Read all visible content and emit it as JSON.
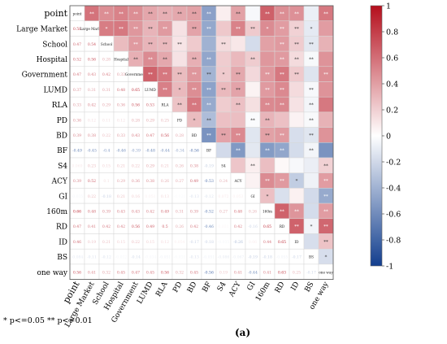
{
  "chart_data": {
    "type": "heatmap",
    "variables": [
      "point",
      "Large Market",
      "School",
      "Hospital",
      "Government",
      "LUMD",
      "RLA",
      "PD",
      "BD",
      "BF",
      "S4",
      "ACY",
      "GI",
      "160m",
      "RD",
      "ID",
      "BS",
      "one way"
    ],
    "colorbar": {
      "ticks": [
        1,
        0.8,
        0.6,
        0.4,
        0.2,
        0,
        -0.2,
        -0.4,
        -0.6,
        -0.8,
        -1
      ],
      "range": [
        -1,
        1
      ]
    },
    "significance_note": "* p<=0.05  ** p<=0.01",
    "panel_label": "(a)",
    "lower_triangle": [
      [],
      [
        0.58
      ],
      [
        0.47,
        0.54
      ],
      [
        0.52,
        0.56,
        0.28
      ],
      [
        0.47,
        0.43,
        0.42,
        0.33
      ],
      [
        0.37,
        0.31,
        0.31,
        0.48,
        0.65
      ],
      [
        0.33,
        0.42,
        0.29,
        0.36,
        0.56,
        0.53
      ],
      [
        0.36,
        0.12,
        0.11,
        0.12,
        0.28,
        0.29,
        0.25
      ],
      [
        0.39,
        0.38,
        0.22,
        0.33,
        0.43,
        0.47,
        0.56,
        0.28
      ],
      [
        -0.49,
        -0.45,
        -0.4,
        -0.46,
        -0.39,
        -0.48,
        -0.44,
        -0.34,
        -0.56
      ],
      [
        0.069,
        0.23,
        0.15,
        0.21,
        0.22,
        0.29,
        0.21,
        0.26,
        0.38,
        -0.19
      ],
      [
        0.39,
        0.52,
        0.1,
        0.29,
        0.36,
        0.38,
        0.26,
        0.27,
        0.49,
        -0.53,
        0.24
      ],
      [
        -0.035,
        0.22,
        -0.18,
        0.21,
        0.16,
        0.051,
        0.13,
        -0.021,
        -0.13,
        -0.12,
        0.072,
        0.053
      ],
      [
        0.66,
        0.48,
        0.39,
        0.43,
        0.43,
        0.42,
        0.49,
        0.31,
        0.39,
        -0.52,
        0.27,
        0.48,
        0.26
      ],
      [
        0.47,
        0.41,
        0.42,
        0.42,
        0.56,
        0.49,
        0.5,
        0.26,
        0.42,
        -0.46,
        0.031,
        0.42,
        -0.16,
        0.65
      ],
      [
        0.46,
        0.19,
        0.21,
        0.15,
        0.22,
        0.15,
        0.12,
        0.054,
        -0.17,
        -0.18,
        -0.035,
        -0.26,
        0.06,
        0.44,
        0.65
      ],
      [
        -0.084,
        -0.11,
        -0.12,
        -0.032,
        -0.14,
        -0.034,
        -0.051,
        -0.031,
        -0.13,
        -0.051,
        -0.086,
        -0.067,
        -0.19,
        -0.18,
        -0.055,
        -0.17
      ],
      [
        0.56,
        0.41,
        0.32,
        0.45,
        0.47,
        0.45,
        0.56,
        0.32,
        0.45,
        -0.56,
        0.19,
        0.41,
        -0.44,
        0.41,
        0.63,
        0.25,
        -0.17
      ]
    ],
    "upper_triangle_stars": [
      [
        "**",
        "**",
        "**",
        "**",
        "**",
        "**",
        "**",
        "**",
        "**",
        "",
        "**",
        "",
        "**",
        "**",
        "**",
        "",
        "**"
      ],
      [
        "*",
        "**",
        "**",
        "**",
        "**",
        "",
        "**",
        "**",
        "",
        "**",
        "**",
        "*",
        "**",
        "**",
        "*",
        "",
        "**"
      ],
      [
        "",
        "**",
        "**",
        "**",
        "**",
        "",
        "",
        "**",
        "",
        "",
        "",
        "**",
        "**",
        "**",
        "",
        "**"
      ],
      [
        "**",
        "**",
        "**",
        "",
        "**",
        "**",
        "",
        "",
        "**",
        "",
        "**",
        "**",
        "**",
        "",
        "**"
      ],
      [
        "**",
        "**",
        "**",
        "**",
        "**",
        "*",
        "**",
        "",
        "**",
        "**",
        "**",
        "",
        "**"
      ],
      [
        "**",
        "*",
        "**",
        "**",
        "**",
        "**",
        "",
        "**",
        "**",
        "",
        "**"
      ],
      [
        "**",
        "**",
        "**",
        "",
        "**",
        "",
        "**",
        "**",
        "",
        "**"
      ],
      [
        "*",
        "**",
        "",
        "",
        "**",
        "**",
        "",
        "",
        "**"
      ],
      [
        "**",
        "**",
        "**",
        "",
        "**",
        "**",
        "",
        "**"
      ],
      [
        "",
        "**",
        "",
        "**",
        "**",
        "",
        "**"
      ],
      [
        "",
        "**",
        "",
        "",
        "",
        "",
        "**"
      ],
      [
        "",
        "**",
        "**",
        "*",
        "",
        "**"
      ],
      [
        "*",
        "",
        "",
        "",
        "**"
      ],
      [
        "**",
        "**",
        "",
        "**"
      ],
      [
        "**",
        "*",
        "**"
      ],
      [
        "",
        "**"
      ],
      [
        "*"
      ]
    ]
  }
}
